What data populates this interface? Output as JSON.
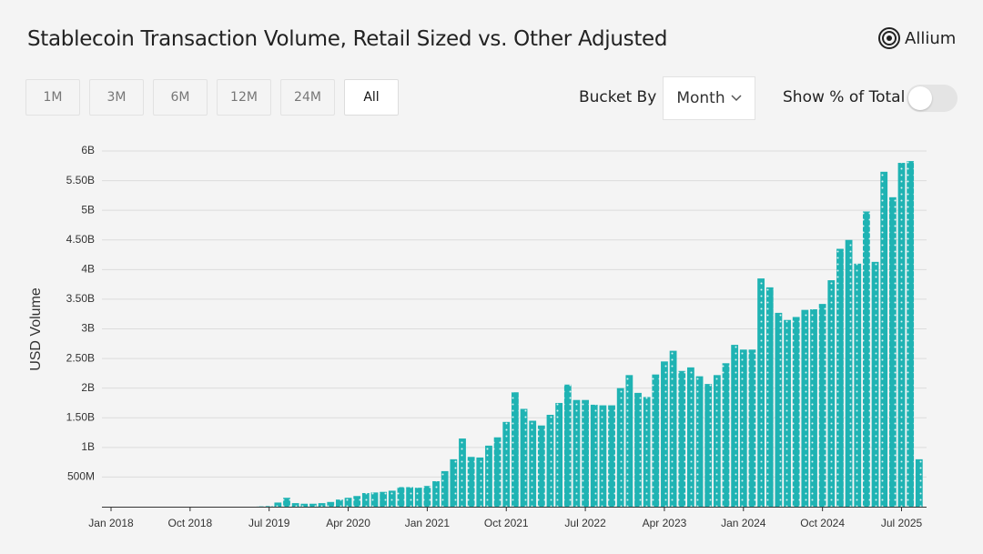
{
  "brand": "Allium",
  "range_buttons": [
    "1M",
    "3M",
    "6M",
    "12M",
    "24M",
    "All"
  ],
  "bucket_label": "Bucket By",
  "bucket_value": "Month",
  "toggle_label": "Show % of Total",
  "chart_data": {
    "type": "bar",
    "title": "Stablecoin Transaction Volume, Retail Sized vs. Other Adjusted",
    "y_label": "USD Volume",
    "color": "#1fb3b3",
    "grid": true,
    "categories": [
      "Jan 2018",
      null,
      null,
      null,
      null,
      null,
      null,
      null,
      null,
      "Oct 2018",
      null,
      null,
      null,
      null,
      null,
      null,
      null,
      null,
      "Jul 2019",
      null,
      null,
      null,
      null,
      null,
      null,
      null,
      null,
      "Apr 2020",
      null,
      null,
      null,
      null,
      null,
      null,
      null,
      null,
      "Jan 2021",
      null,
      null,
      null,
      null,
      null,
      null,
      null,
      null,
      "Oct 2021",
      null,
      null,
      null,
      null,
      null,
      null,
      null,
      null,
      "Jul 2022",
      null,
      null,
      null,
      null,
      null,
      null,
      null,
      null,
      "Apr 2023",
      null,
      null,
      null,
      null,
      null,
      null,
      null,
      null,
      "Jan 2024",
      null,
      null,
      null,
      null,
      null,
      null,
      null,
      null,
      "Oct 2024",
      null,
      null,
      null,
      null,
      null,
      null,
      null,
      null,
      "Jul 2025",
      null,
      null
    ],
    "values": [
      0,
      0,
      0,
      0,
      0,
      0,
      0,
      0,
      0,
      0,
      0,
      0,
      0,
      0,
      0,
      0,
      0,
      5000000,
      10000000,
      70000000,
      150000000,
      60000000,
      50000000,
      50000000,
      60000000,
      80000000,
      120000000,
      150000000,
      180000000,
      230000000,
      240000000,
      250000000,
      270000000,
      330000000,
      330000000,
      320000000,
      350000000,
      430000000,
      600000000,
      800000000,
      1150000000,
      840000000,
      830000000,
      1030000000,
      1170000000,
      1430000000,
      1930000000,
      1650000000,
      1450000000,
      1370000000,
      1550000000,
      1750000000,
      2060000000,
      1800000000,
      1800000000,
      1720000000,
      1710000000,
      1710000000,
      2000000000,
      2220000000,
      1920000000,
      1850000000,
      2230000000,
      2450000000,
      2630000000,
      2290000000,
      2350000000,
      2200000000,
      2070000000,
      2220000000,
      2420000000,
      2730000000,
      2650000000,
      2650000000,
      3850000000,
      3700000000,
      3270000000,
      3150000000,
      3200000000,
      3320000000,
      3330000000,
      3420000000,
      3820000000,
      4350000000,
      4500000000,
      4100000000,
      4980000000,
      4130000000,
      5650000000,
      5220000000,
      5800000000,
      5830000000,
      800000000
    ],
    "ylim": [
      0,
      6000000000
    ],
    "yticks": [
      {
        "value": 500000000,
        "label": "500M"
      },
      {
        "value": 1000000000,
        "label": "1B"
      },
      {
        "value": 1500000000,
        "label": "1.50B"
      },
      {
        "value": 2000000000,
        "label": "2B"
      },
      {
        "value": 2500000000,
        "label": "2.50B"
      },
      {
        "value": 3000000000,
        "label": "3B"
      },
      {
        "value": 3500000000,
        "label": "3.50B"
      },
      {
        "value": 4000000000,
        "label": "4B"
      },
      {
        "value": 4500000000,
        "label": "4.50B"
      },
      {
        "value": 5000000000,
        "label": "5B"
      },
      {
        "value": 5500000000,
        "label": "5.50B"
      },
      {
        "value": 6000000000,
        "label": "6B"
      }
    ]
  }
}
